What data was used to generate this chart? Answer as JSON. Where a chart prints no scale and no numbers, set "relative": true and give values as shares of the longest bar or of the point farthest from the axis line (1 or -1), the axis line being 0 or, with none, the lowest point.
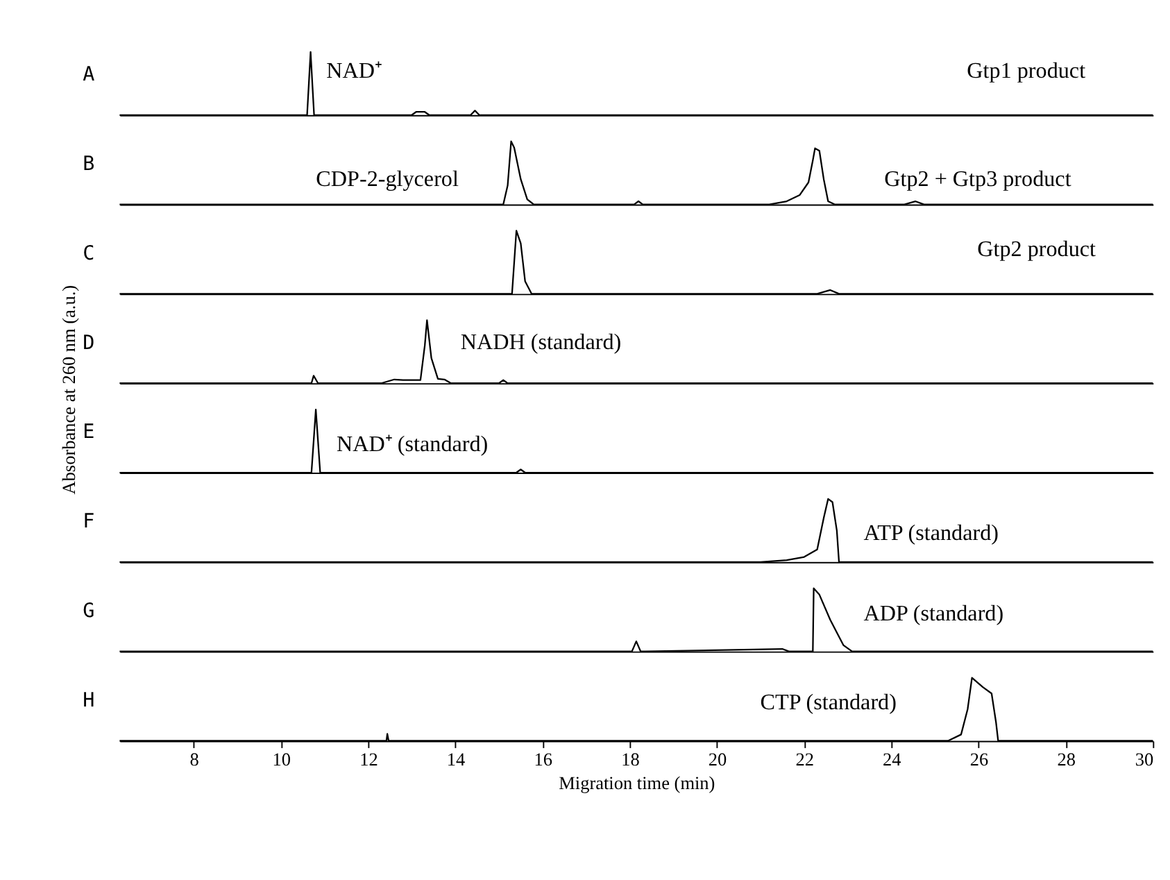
{
  "chart_data": [
    {
      "type": "line",
      "relative": true,
      "color": "#000000",
      "xlim": [
        6.3,
        30
      ],
      "tick_labels": false,
      "x": [
        6.3,
        10.6,
        10.68,
        10.76,
        13.0,
        13.1,
        13.3,
        13.4,
        14.35,
        14.45,
        14.55,
        30
      ],
      "values": [
        0,
        0,
        1.0,
        0,
        0,
        0.05,
        0.05,
        0,
        0,
        0.07,
        0,
        0
      ],
      "annotations": [
        "A",
        "NAD⁺",
        "Gtp1 product"
      ]
    },
    {
      "type": "line",
      "relative": true,
      "color": "#000000",
      "xlim": [
        6.3,
        30
      ],
      "tick_labels": false,
      "x": [
        6.3,
        15.1,
        15.2,
        15.28,
        15.35,
        15.5,
        15.65,
        15.8,
        18.1,
        18.2,
        18.3,
        21.2,
        21.6,
        21.9,
        22.1,
        22.2,
        22.25,
        22.35,
        22.45,
        22.55,
        22.7,
        24.3,
        24.55,
        24.75,
        29.7,
        30
      ],
      "values": [
        0,
        0,
        0.3,
        1.0,
        0.9,
        0.4,
        0.08,
        0,
        0,
        0.05,
        0,
        0,
        0.05,
        0.15,
        0.35,
        0.7,
        0.89,
        0.85,
        0.4,
        0.05,
        0,
        0,
        0.05,
        0,
        0,
        0
      ],
      "annotations": [
        "B",
        "CDP-2-glycerol",
        "Gtp2 + Gtp3 product"
      ]
    },
    {
      "type": "line",
      "relative": true,
      "color": "#000000",
      "xlim": [
        6.3,
        30
      ],
      "tick_labels": false,
      "x": [
        6.3,
        15.3,
        15.4,
        15.5,
        15.6,
        15.75,
        22.3,
        22.6,
        22.8,
        30
      ],
      "values": [
        0,
        0,
        1.0,
        0.8,
        0.2,
        0,
        0,
        0.06,
        0,
        0
      ],
      "annotations": [
        "C",
        "Gtp2 product"
      ]
    },
    {
      "type": "line",
      "relative": true,
      "color": "#000000",
      "xlim": [
        6.3,
        30
      ],
      "tick_labels": false,
      "ylabel": "Absorbance at 260 nm (a.u.)",
      "x": [
        6.3,
        10.7,
        10.75,
        10.85,
        12.3,
        12.6,
        12.8,
        13.2,
        13.3,
        13.35,
        13.45,
        13.6,
        13.75,
        13.9,
        15.0,
        15.1,
        15.2,
        30
      ],
      "values": [
        0,
        0,
        0.12,
        0,
        0,
        0.06,
        0.05,
        0.05,
        0.6,
        1.0,
        0.4,
        0.07,
        0.06,
        0,
        0,
        0.05,
        0,
        0
      ],
      "annotations": [
        "D",
        "NADH (standard)"
      ]
    },
    {
      "type": "line",
      "relative": true,
      "color": "#000000",
      "xlim": [
        6.3,
        30
      ],
      "tick_labels": false,
      "x": [
        6.3,
        10.7,
        10.8,
        10.9,
        15.4,
        15.5,
        15.6,
        30
      ],
      "values": [
        0,
        0,
        1.0,
        0,
        0,
        0.05,
        0,
        0
      ],
      "annotations": [
        "E",
        "NAD⁺ (standard)"
      ]
    },
    {
      "type": "line",
      "relative": true,
      "color": "#000000",
      "xlim": [
        6.3,
        30
      ],
      "tick_labels": false,
      "x": [
        6.3,
        21.0,
        21.6,
        22.0,
        22.3,
        22.45,
        22.55,
        22.65,
        22.75,
        22.8,
        30
      ],
      "values": [
        0,
        0,
        0.03,
        0.08,
        0.2,
        0.7,
        1.0,
        0.95,
        0.5,
        0,
        0
      ],
      "annotations": [
        "F",
        "ATP (standard)"
      ]
    },
    {
      "type": "line",
      "relative": true,
      "color": "#000000",
      "xlim": [
        6.3,
        30
      ],
      "tick_labels": false,
      "x": [
        6.3,
        18.05,
        18.15,
        18.25,
        18.35,
        21.5,
        21.65,
        22.2,
        22.22,
        22.35,
        22.6,
        22.9,
        23.1,
        30
      ],
      "values": [
        0,
        0,
        0.16,
        0,
        0,
        0.04,
        0,
        0,
        1.0,
        0.9,
        0.5,
        0.1,
        0,
        0
      ],
      "annotations": [
        "G",
        "ADP (standard)"
      ]
    },
    {
      "type": "line",
      "relative": true,
      "color": "#000000",
      "xlim": [
        6.3,
        30
      ],
      "xticks": [
        8,
        10,
        12,
        14,
        16,
        18,
        20,
        22,
        24,
        26,
        28,
        30
      ],
      "tick_labels": "x",
      "xlabel": "Migration time (min)",
      "x": [
        6.3,
        12.42,
        12.44,
        12.47,
        25.3,
        25.6,
        25.75,
        25.85,
        26.1,
        26.3,
        26.4,
        26.45,
        30
      ],
      "values": [
        0,
        0,
        0.11,
        0,
        0,
        0.1,
        0.5,
        1.0,
        0.85,
        0.75,
        0.3,
        0,
        0
      ],
      "annotations": [
        "H",
        "CTP (standard)"
      ]
    }
  ]
}
